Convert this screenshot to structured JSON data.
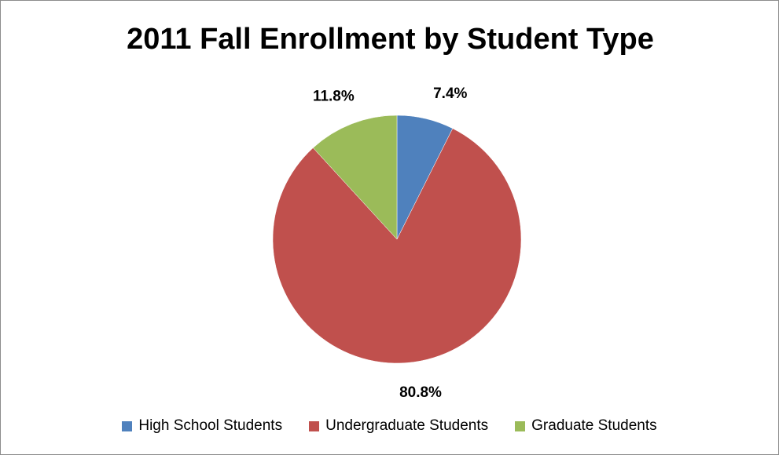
{
  "chart_data": {
    "type": "pie",
    "title": "2011 Fall Enrollment by Student Type",
    "categories": [
      "High School Students",
      "Undergraduate Students",
      "Graduate Students"
    ],
    "values": [
      7.4,
      80.8,
      11.8
    ],
    "data_labels": [
      "7.4%",
      "80.8%",
      "11.8%"
    ],
    "colors": [
      "#4f81bd",
      "#c0504d",
      "#9bbb59"
    ],
    "start_angle": "12 o'clock",
    "direction": "clockwise",
    "legend": "bottom"
  }
}
